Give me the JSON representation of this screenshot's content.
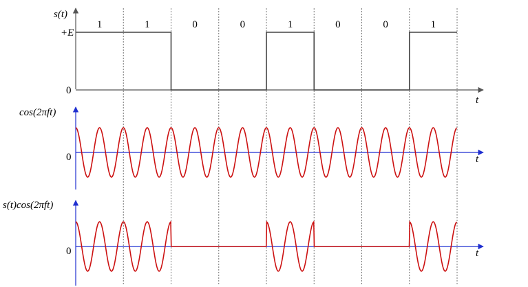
{
  "signal_panel": {
    "ylabel": "s(t)",
    "level_label": "+E",
    "zero_label": "0",
    "t_label": "t",
    "bits": [
      "1",
      "1",
      "0",
      "0",
      "1",
      "0",
      "0",
      "1"
    ]
  },
  "carrier_panel": {
    "ylabel": "cos(2πft)",
    "zero_label": "0",
    "t_label": "t",
    "cycles_per_bit": 2
  },
  "modulated_panel": {
    "ylabel": "s(t)cos(2πft)",
    "zero_label": "0",
    "t_label": "t"
  },
  "colors": {
    "wave": "#cc1111",
    "axis_blue": "#1f2fd0",
    "axis_dark": "#555555",
    "divider": "#777777",
    "square": "#444444"
  }
}
